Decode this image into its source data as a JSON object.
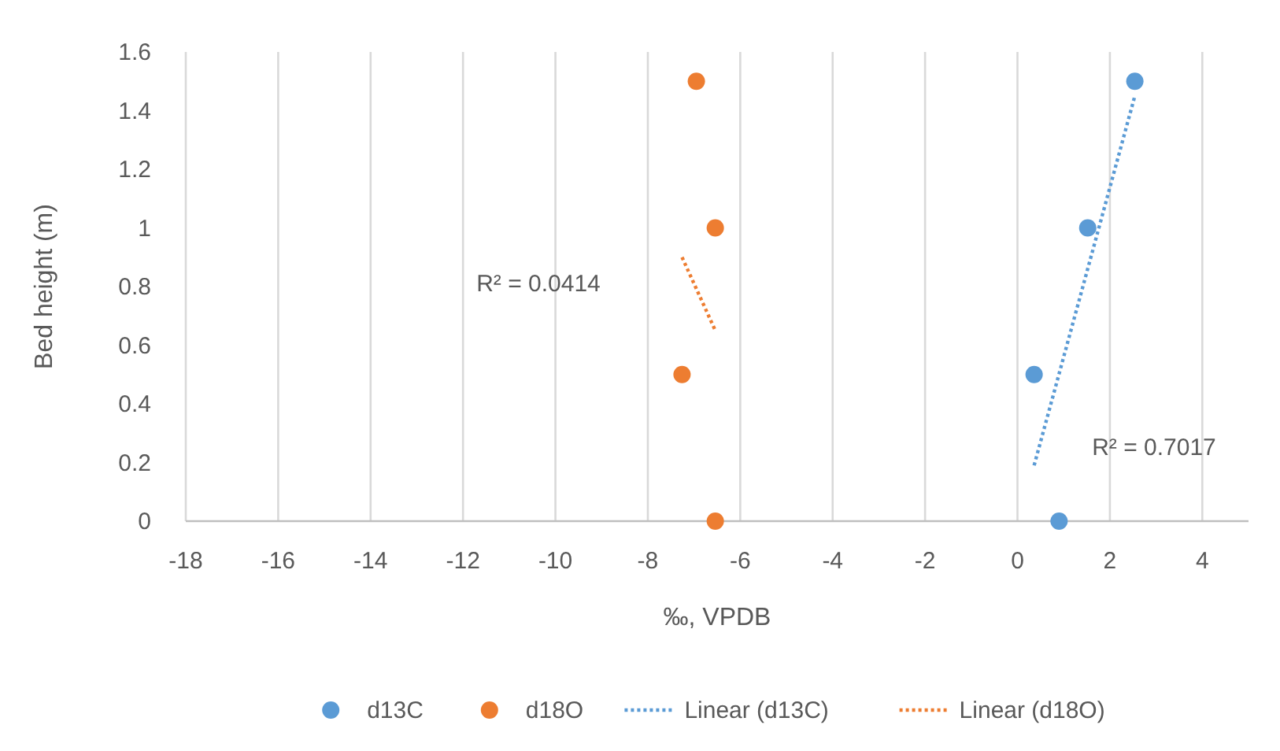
{
  "chart_data": {
    "type": "scatter",
    "xlabel": "‰, VPDB",
    "ylabel": "Bed height (m)",
    "xlim": [
      -18,
      5
    ],
    "xticks": [
      -18,
      -16,
      -14,
      -12,
      -10,
      -8,
      -6,
      -4,
      -2,
      0,
      2,
      4
    ],
    "ylim": [
      0,
      1.6
    ],
    "yticks": [
      0,
      0.2,
      0.4,
      0.6,
      0.8,
      1,
      1.2,
      1.4,
      1.6
    ],
    "grid": "x",
    "legend": "bottom",
    "series": [
      {
        "name": "d13C",
        "color": "#5b9bd5",
        "marker": "circle",
        "x": [
          2.54,
          1.52,
          0.36,
          0.9
        ],
        "values": [
          1.5,
          1,
          0.5,
          0
        ]
      },
      {
        "name": "d18O",
        "color": "#ed7d31",
        "marker": "circle",
        "x": [
          -6.95,
          -6.54,
          -7.26,
          -6.54
        ],
        "values": [
          1.5,
          1,
          0.5,
          0
        ]
      },
      {
        "name": "Linear (d13C)",
        "type": "line",
        "color": "#5b9bd5",
        "marker": "none",
        "line_style": "dotted",
        "x": [
          0.36,
          2.54
        ],
        "values": [
          0.19,
          1.45
        ]
      },
      {
        "name": "Linear (d18O)",
        "type": "line",
        "color": "#ed7d31",
        "marker": "none",
        "line_style": "dotted",
        "x": [
          -7.26,
          -6.54
        ],
        "values": [
          0.9,
          0.65
        ]
      }
    ],
    "annotations": [
      "R² = 0.0414",
      "R² = 0.7017"
    ]
  }
}
